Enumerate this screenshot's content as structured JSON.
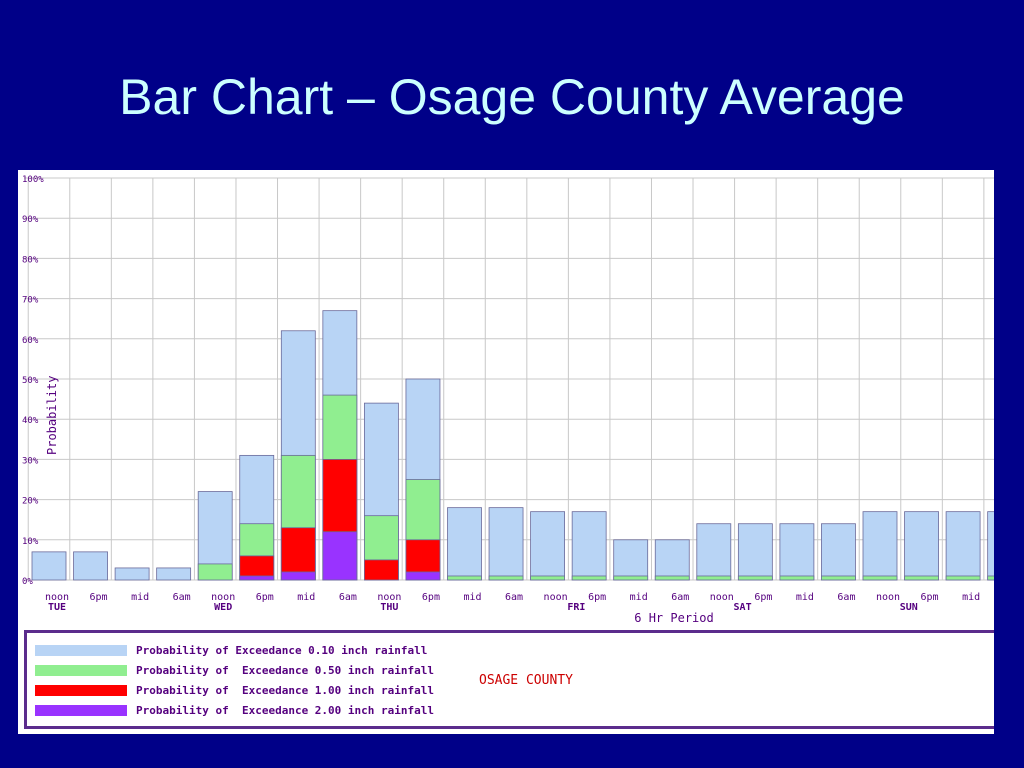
{
  "slide": {
    "title": "Bar Chart – Osage County Average"
  },
  "chart_data": {
    "type": "bar",
    "stacked": false,
    "overlapping_bars": true,
    "ylabel": "Probability",
    "xlabel": "6 Hr Period",
    "ylim": [
      0,
      100
    ],
    "y_ticks": [
      "0%",
      "10%",
      "20%",
      "30%",
      "40%",
      "50%",
      "60%",
      "70%",
      "80%",
      "90%",
      "100%"
    ],
    "grid": true,
    "x_tick_labels": [
      "noon",
      "6pm",
      "mid",
      "6am",
      "noon",
      "6pm",
      "mid",
      "6am",
      "noon",
      "6pm",
      "mid",
      "6am",
      "noon",
      "6pm",
      "mid",
      "6am",
      "noon",
      "6pm",
      "mid",
      "6am",
      "noon",
      "6pm",
      "mid"
    ],
    "day_labels": [
      "TUE",
      "WED",
      "THU",
      "FRI",
      "SAT",
      "SUN"
    ],
    "day_label_positions": [
      0,
      4,
      8,
      12.5,
      16.5,
      20.5
    ],
    "series": [
      {
        "name": "Probability of Exceedance 0.10 inch rainfall",
        "color": "#b8d4f5",
        "values": [
          7,
          7,
          3,
          3,
          22,
          31,
          62,
          67,
          44,
          50,
          18,
          18,
          17,
          17,
          10,
          10,
          14,
          14,
          14,
          14,
          17,
          17,
          17,
          17
        ]
      },
      {
        "name": "Probability of  Exceedance 0.50 inch rainfall",
        "color": "#90ee90",
        "values": [
          0,
          0,
          0,
          0,
          4,
          14,
          31,
          46,
          16,
          25,
          1,
          1,
          1,
          1,
          1,
          1,
          1,
          1,
          1,
          1,
          1,
          1,
          1,
          1
        ]
      },
      {
        "name": "Probability of  Exceedance 1.00 inch rainfall",
        "color": "#ff0000",
        "values": [
          0,
          0,
          0,
          0,
          0,
          6,
          13,
          30,
          5,
          10,
          0,
          0,
          0,
          0,
          0,
          0,
          0,
          0,
          0,
          0,
          0,
          0,
          0,
          0
        ]
      },
      {
        "name": "Probability of  Exceedance 2.00 inch rainfall",
        "color": "#9933ff",
        "values": [
          0,
          0,
          0,
          0,
          0,
          1,
          2,
          12,
          0,
          2,
          0,
          0,
          0,
          0,
          0,
          0,
          0,
          0,
          0,
          0,
          0,
          0,
          0,
          0
        ]
      }
    ],
    "county_label": "OSAGE COUNTY"
  }
}
